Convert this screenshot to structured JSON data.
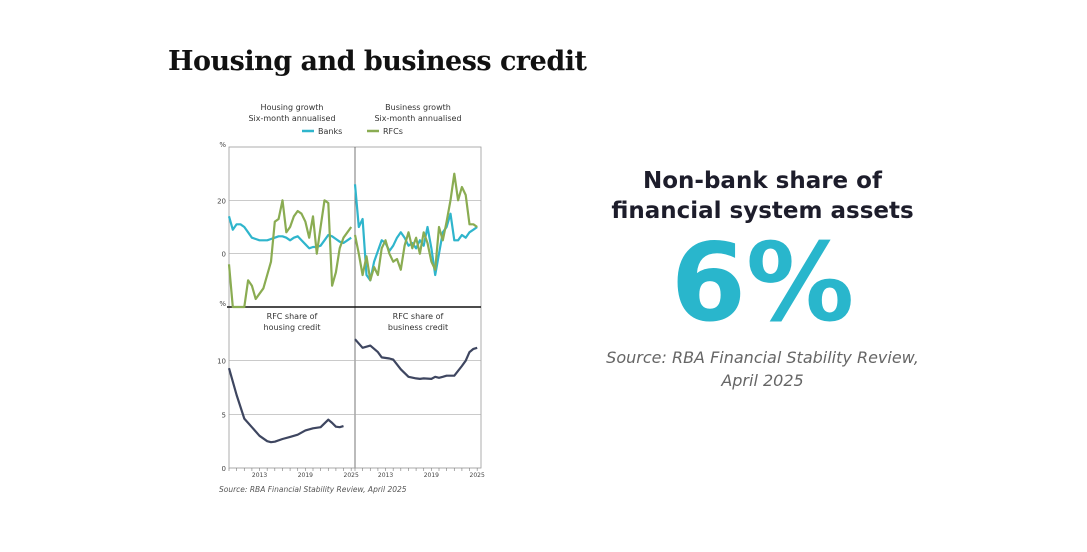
{
  "title": "Housing and business credit",
  "source": "Source: RBA Financial Stability Review, April 2025",
  "stat": {
    "heading": "Non-bank share of financial system assets",
    "value": "6%",
    "source": "Source: RBA Financial Stability Review, April 2025"
  },
  "colors": {
    "banks": "#2fb5cc",
    "rfcs": "#8aac52",
    "share": "#3e4660",
    "accent": "#29b6cc"
  },
  "chart_data": [
    {
      "type": "line",
      "panel": "top-left",
      "title": [
        "Housing growth",
        "Six-month annualised"
      ],
      "ylabel": "%",
      "ylim": [
        -20,
        40
      ],
      "yticks": [
        0,
        20
      ],
      "xlim": [
        2009,
        2025.5
      ],
      "legend": {
        "placement": "top",
        "entries": [
          "Banks",
          "RFCs"
        ]
      },
      "x": [
        2009,
        2009.5,
        2010,
        2010.5,
        2011,
        2011.5,
        2012,
        2012.5,
        2013,
        2013.5,
        2014,
        2014.5,
        2015,
        2015.5,
        2016,
        2016.5,
        2017,
        2017.5,
        2018,
        2018.5,
        2019,
        2019.5,
        2020,
        2020.5,
        2021,
        2021.5,
        2022,
        2022.5,
        2023,
        2023.5,
        2024,
        2024.5,
        2025
      ],
      "series": [
        {
          "name": "Banks",
          "values": [
            14,
            9,
            11,
            11,
            10,
            8,
            6,
            5.5,
            5,
            5,
            5,
            5.5,
            6,
            6.5,
            6.5,
            6,
            5,
            6,
            6.5,
            5,
            3.5,
            2,
            2.5,
            2.5,
            3,
            5,
            7,
            6.5,
            5.5,
            4.5,
            4,
            5,
            6
          ]
        },
        {
          "name": "RFCs",
          "values": [
            -4,
            -20,
            -20,
            -20,
            -20,
            -10,
            -12,
            -17,
            -15,
            -13,
            -8,
            -3,
            12,
            13,
            20,
            8,
            10,
            14,
            16,
            15,
            12,
            6,
            14,
            0,
            10,
            20,
            19,
            -12,
            -7,
            2,
            6,
            8,
            10
          ]
        }
      ]
    },
    {
      "type": "line",
      "panel": "top-right",
      "title": [
        "Business growth",
        "Six-month annualised"
      ],
      "ylim": [
        -20,
        40
      ],
      "yticks": [
        0,
        20
      ],
      "xlim": [
        2009,
        2025.5
      ],
      "x": [
        2009,
        2009.5,
        2010,
        2010.5,
        2011,
        2011.5,
        2012,
        2012.5,
        2013,
        2013.5,
        2014,
        2014.5,
        2015,
        2015.5,
        2016,
        2016.5,
        2017,
        2017.5,
        2018,
        2018.5,
        2019,
        2019.5,
        2020,
        2020.5,
        2021,
        2021.5,
        2022,
        2022.5,
        2023,
        2023.5,
        2024,
        2024.5,
        2025
      ],
      "series": [
        {
          "name": "Banks",
          "values": [
            26,
            10,
            13,
            -8,
            -10,
            -3,
            1,
            5,
            4,
            1,
            3,
            6,
            8,
            6,
            3,
            4,
            2,
            5,
            3,
            10,
            2,
            -8,
            0,
            8,
            10,
            15,
            5,
            5,
            7,
            6,
            8,
            9,
            10
          ]
        },
        {
          "name": "RFCs",
          "values": [
            7,
            0,
            -8,
            -1,
            -10,
            -5,
            -8,
            2,
            5,
            0,
            -3,
            -2,
            -6,
            3,
            8,
            2,
            6,
            0,
            8,
            4,
            -3,
            -6,
            10,
            5,
            12,
            20,
            30,
            20,
            25,
            22,
            11,
            11,
            10
          ]
        }
      ]
    },
    {
      "type": "line",
      "panel": "bottom-left",
      "title": [
        "RFC share of",
        "housing credit"
      ],
      "ylabel": "%",
      "ylim": [
        0,
        15
      ],
      "yticks": [
        0,
        5,
        10
      ],
      "xlim": [
        2009,
        2025.5
      ],
      "xticks": [
        "2013",
        "2019",
        "2025"
      ],
      "x": [
        2009,
        2010,
        2011,
        2012,
        2013,
        2014,
        2014.5,
        2015,
        2016,
        2017,
        2018,
        2019,
        2020,
        2021,
        2022,
        2022.5,
        2023,
        2023.5,
        2024
      ],
      "series": [
        {
          "values": [
            9.3,
            6.8,
            4.6,
            3.8,
            3.0,
            2.5,
            2.4,
            2.45,
            2.7,
            2.9,
            3.1,
            3.5,
            3.7,
            3.8,
            4.5,
            4.2,
            3.85,
            3.8,
            3.9
          ]
        }
      ]
    },
    {
      "type": "line",
      "panel": "bottom-right",
      "title": [
        "RFC share of",
        "business credit"
      ],
      "ylim": [
        0,
        15
      ],
      "yticks": [
        0,
        5,
        10
      ],
      "xlim": [
        2009,
        2025.5
      ],
      "xticks": [
        "2013",
        "2019",
        "2025"
      ],
      "x": [
        2009,
        2010,
        2011,
        2012,
        2012.5,
        2013.5,
        2014,
        2015,
        2016,
        2017,
        2017.5,
        2018,
        2019,
        2019.5,
        2020,
        2020.5,
        2021,
        2022,
        2023,
        2023.5,
        2024,
        2024.5,
        2025
      ],
      "series": [
        {
          "values": [
            12,
            11.2,
            11.4,
            10.8,
            10.3,
            10.2,
            10.1,
            9.2,
            8.5,
            8.35,
            8.3,
            8.35,
            8.3,
            8.5,
            8.4,
            8.5,
            8.6,
            8.6,
            9.5,
            10,
            10.8,
            11.1,
            11.2
          ]
        }
      ]
    }
  ]
}
